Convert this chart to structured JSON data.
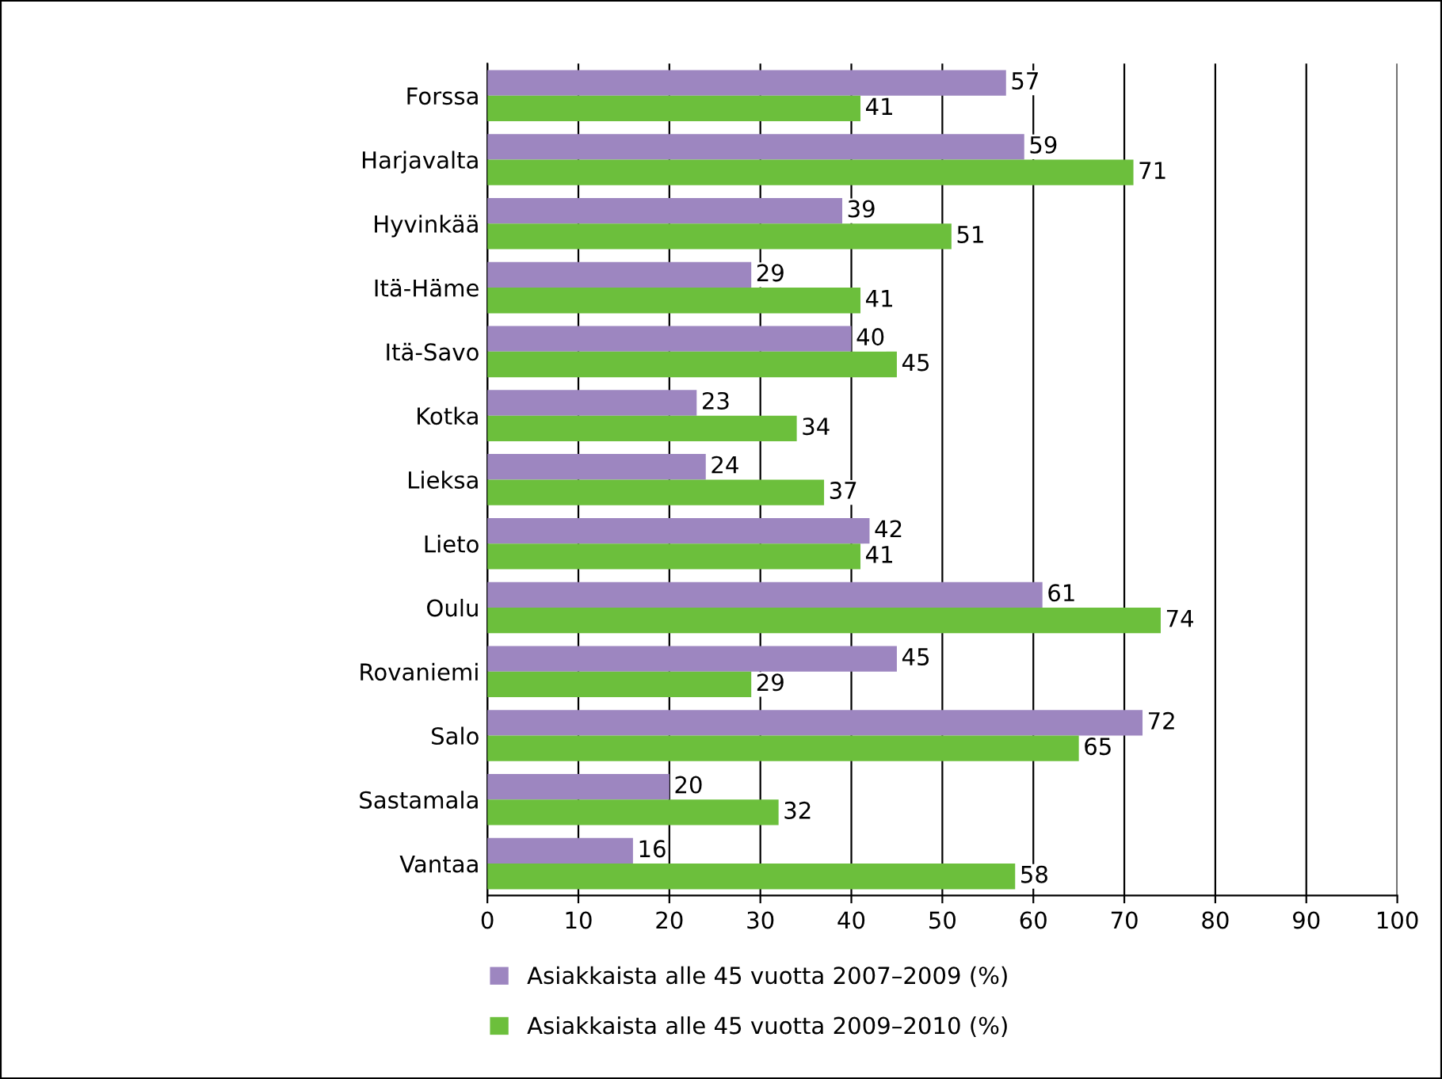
{
  "chart_data": {
    "type": "bar",
    "orientation": "horizontal",
    "categories": [
      "Forssa",
      "Harjavalta",
      "Hyvinkää",
      "Itä-Häme",
      "Itä-Savo",
      "Kotka",
      "Lieksa",
      "Lieto",
      "Oulu",
      "Rovaniemi",
      "Salo",
      "Sastamala",
      "Vantaa"
    ],
    "series": [
      {
        "name": "Asiakkaista alle 45 vuotta 2007–2009 (%)",
        "color": "#9d86c0",
        "values": [
          57,
          59,
          39,
          29,
          40,
          23,
          24,
          42,
          61,
          45,
          72,
          20,
          16
        ]
      },
      {
        "name": "Asiakkaista alle 45 vuotta 2009–2010 (%)",
        "color": "#6cbf3c",
        "values": [
          41,
          71,
          51,
          41,
          45,
          34,
          37,
          41,
          74,
          29,
          65,
          32,
          58
        ]
      }
    ],
    "xlim": [
      0,
      100
    ],
    "xticks": [
      0,
      10,
      20,
      30,
      40,
      50,
      60,
      70,
      80,
      90,
      100
    ],
    "grid": "x",
    "data_labels": true,
    "legend": "bottom"
  }
}
